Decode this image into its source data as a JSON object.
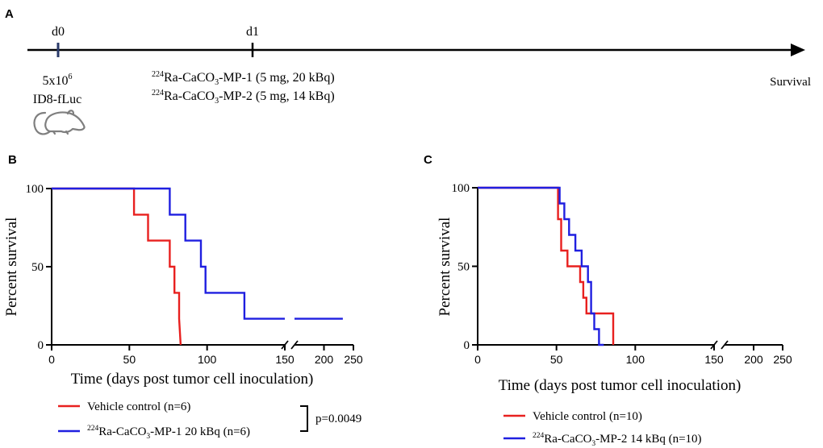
{
  "panel_a": {
    "letter": "A",
    "d0_label": "d0",
    "d1_label": "d1",
    "cells_base": "5x10",
    "cells_exp": "6",
    "cell_line": "ID8-fLuc",
    "treat1": {
      "sup": "224",
      "pre": "Ra-CaCO",
      "sub": "3",
      "post": "-MP-1 (5 mg, 20 kBq)"
    },
    "treat2": {
      "sup": "224",
      "pre": "Ra-CaCO",
      "sub": "3",
      "post": "-MP-2 (5 mg, 14 kBq)"
    },
    "endpoint": "Survival",
    "mouse_icon": "mouse-icon"
  },
  "chart_data": [
    {
      "panel": "B",
      "type": "line",
      "step": true,
      "ylabel": "Percent survival",
      "xlabel": "Time (days post tumor cell inoculation)",
      "x_ticks_seg1": [
        "0",
        "50",
        "100",
        "150"
      ],
      "x_ticks_seg2": [
        "200",
        "250"
      ],
      "y_ticks": [
        "0",
        "50",
        "100"
      ],
      "xlim_seg1": [
        0,
        150
      ],
      "xlim_seg2": [
        150,
        250
      ],
      "ylim": [
        0,
        100
      ],
      "series": [
        {
          "name": "Vehicle control (n=6)",
          "color": "#e8201f",
          "x": [
            0,
            53,
            53,
            62,
            62,
            76,
            76,
            79,
            79,
            82,
            82,
            83
          ],
          "y": [
            100,
            100,
            83.3,
            83.3,
            66.7,
            66.7,
            50,
            50,
            33.3,
            33.3,
            16.7,
            0
          ]
        },
        {
          "name_sup": "224",
          "name_pre": "Ra-CaCO",
          "name_sub": "3",
          "name_post": "-MP-1 20 kBq (n=6)",
          "color": "#1f1fe0",
          "x": [
            0,
            76,
            76,
            86,
            86,
            96,
            96,
            99,
            99,
            124,
            124,
            150
          ],
          "y": [
            100,
            100,
            83.3,
            83.3,
            66.7,
            66.7,
            50,
            50,
            33.3,
            33.3,
            16.7,
            16.7
          ],
          "x2": [
            150,
            232
          ],
          "y2": [
            16.7,
            16.7
          ]
        }
      ],
      "pvalue": "p=0.0049"
    },
    {
      "panel": "C",
      "type": "line",
      "step": true,
      "ylabel": "Percent survival",
      "xlabel": "Time (days post tumor cell inoculation)",
      "x_ticks_seg1": [
        "0",
        "50",
        "100",
        "150"
      ],
      "x_ticks_seg2": [
        "200",
        "250"
      ],
      "y_ticks": [
        "0",
        "50",
        "100"
      ],
      "xlim_seg1": [
        0,
        150
      ],
      "xlim_seg2": [
        150,
        250
      ],
      "ylim": [
        0,
        100
      ],
      "series": [
        {
          "name": "Vehicle control (n=10)",
          "color": "#e8201f",
          "x": [
            0,
            51,
            51,
            53,
            53,
            57,
            57,
            65,
            65,
            67,
            67,
            69,
            69,
            73,
            73,
            86,
            86
          ],
          "y": [
            100,
            100,
            80,
            80,
            60,
            60,
            50,
            50,
            40,
            40,
            30,
            30,
            20,
            20,
            20,
            20,
            0
          ]
        },
        {
          "name_sup": "224",
          "name_pre": "Ra-CaCO",
          "name_sub": "3",
          "name_post": "-MP-2 14 kBq (n=10)",
          "color": "#1f1fe0",
          "x": [
            0,
            52,
            52,
            55,
            55,
            58,
            58,
            62,
            62,
            66,
            66,
            70,
            70,
            72,
            72,
            74,
            74,
            77,
            77,
            80,
            80
          ],
          "y": [
            100,
            100,
            90,
            90,
            80,
            80,
            70,
            70,
            60,
            60,
            50,
            50,
            40,
            40,
            20,
            20,
            10,
            10,
            0,
            0,
            0
          ]
        }
      ]
    }
  ]
}
